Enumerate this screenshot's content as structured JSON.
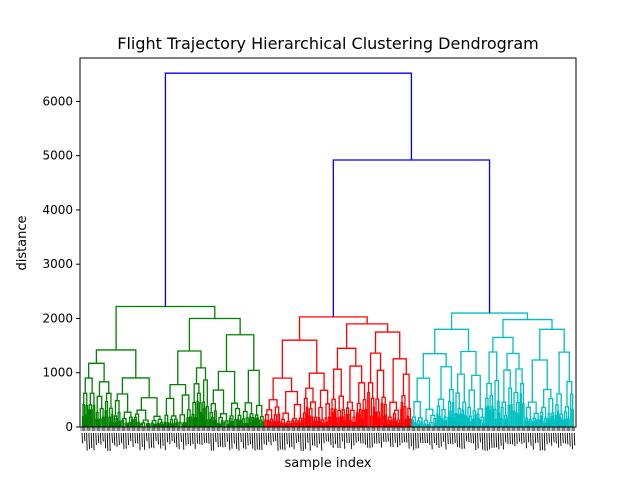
{
  "chart_data": {
    "type": "dendrogram",
    "title": "Flight Trajectory Hierarchical Clustering Dendrogram",
    "xlabel": "sample index",
    "ylabel": "distance",
    "ylim": [
      0,
      6800
    ],
    "yticks": [
      0,
      1000,
      2000,
      3000,
      4000,
      5000,
      6000
    ],
    "grid": false,
    "legend": "none",
    "link_color_above_threshold": "#0000ff",
    "clusters": [
      {
        "color": "#008000",
        "merge_height": 2220,
        "sample_share": 0.37,
        "subclusters": [
          {
            "merge_height": 1420
          },
          {
            "merge_height": 2000,
            "subclusters": [
              {
                "merge_height": 1400
              },
              {
                "merge_height": 1700
              }
            ]
          }
        ]
      },
      {
        "color": "#ff0000",
        "merge_height": 2030,
        "sample_share": 0.3,
        "subclusters": [
          {
            "merge_height": 1600
          },
          {
            "merge_height": 1900,
            "subclusters": [
              {
                "merge_height": 1450
              },
              {
                "merge_height": 1750
              }
            ]
          }
        ]
      },
      {
        "color": "#00bfbf",
        "merge_height": 2100,
        "sample_share": 0.33,
        "subclusters": [
          {
            "merge_height": 1800
          },
          {
            "merge_height": 1980,
            "subclusters": [
              {
                "merge_height": 1650
              },
              {
                "merge_height": 1800
              }
            ]
          }
        ]
      }
    ],
    "top_links": [
      {
        "joins": "red+cyan",
        "height": 4920
      },
      {
        "joins": "green+(red+cyan)",
        "height": 6520
      }
    ]
  }
}
